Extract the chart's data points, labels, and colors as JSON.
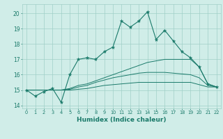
{
  "xlabel": "Humidex (Indice chaleur)",
  "x": [
    0,
    1,
    2,
    3,
    4,
    5,
    6,
    7,
    8,
    9,
    10,
    11,
    12,
    13,
    14,
    15,
    16,
    17,
    18,
    19,
    20,
    21,
    22
  ],
  "main_line": [
    15.0,
    14.6,
    14.9,
    15.1,
    14.2,
    16.0,
    17.0,
    17.1,
    17.0,
    17.5,
    17.8,
    19.5,
    19.1,
    19.5,
    20.1,
    18.3,
    18.9,
    18.2,
    17.5,
    17.1,
    16.5,
    15.4,
    15.2
  ],
  "line2": [
    15.0,
    15.0,
    15.0,
    15.0,
    15.0,
    15.1,
    15.3,
    15.4,
    15.6,
    15.8,
    16.0,
    16.2,
    16.4,
    16.6,
    16.8,
    16.9,
    17.0,
    17.0,
    17.0,
    17.0,
    16.5,
    15.4,
    15.2
  ],
  "line3": [
    15.0,
    15.0,
    15.0,
    15.0,
    15.0,
    15.05,
    15.2,
    15.3,
    15.5,
    15.65,
    15.8,
    15.9,
    16.0,
    16.1,
    16.15,
    16.15,
    16.15,
    16.1,
    16.05,
    16.0,
    15.8,
    15.3,
    15.2
  ],
  "line4": [
    15.0,
    15.0,
    15.0,
    15.0,
    15.0,
    15.0,
    15.05,
    15.1,
    15.2,
    15.3,
    15.35,
    15.4,
    15.45,
    15.5,
    15.5,
    15.5,
    15.5,
    15.5,
    15.5,
    15.5,
    15.35,
    15.2,
    15.2
  ],
  "color": "#1a7a6a",
  "bg_color": "#d0ede8",
  "grid_color": "#a0cfc8",
  "ylim": [
    13.8,
    20.6
  ],
  "yticks": [
    14,
    15,
    16,
    17,
    18,
    19,
    20
  ],
  "xlim": [
    -0.5,
    22.5
  ]
}
